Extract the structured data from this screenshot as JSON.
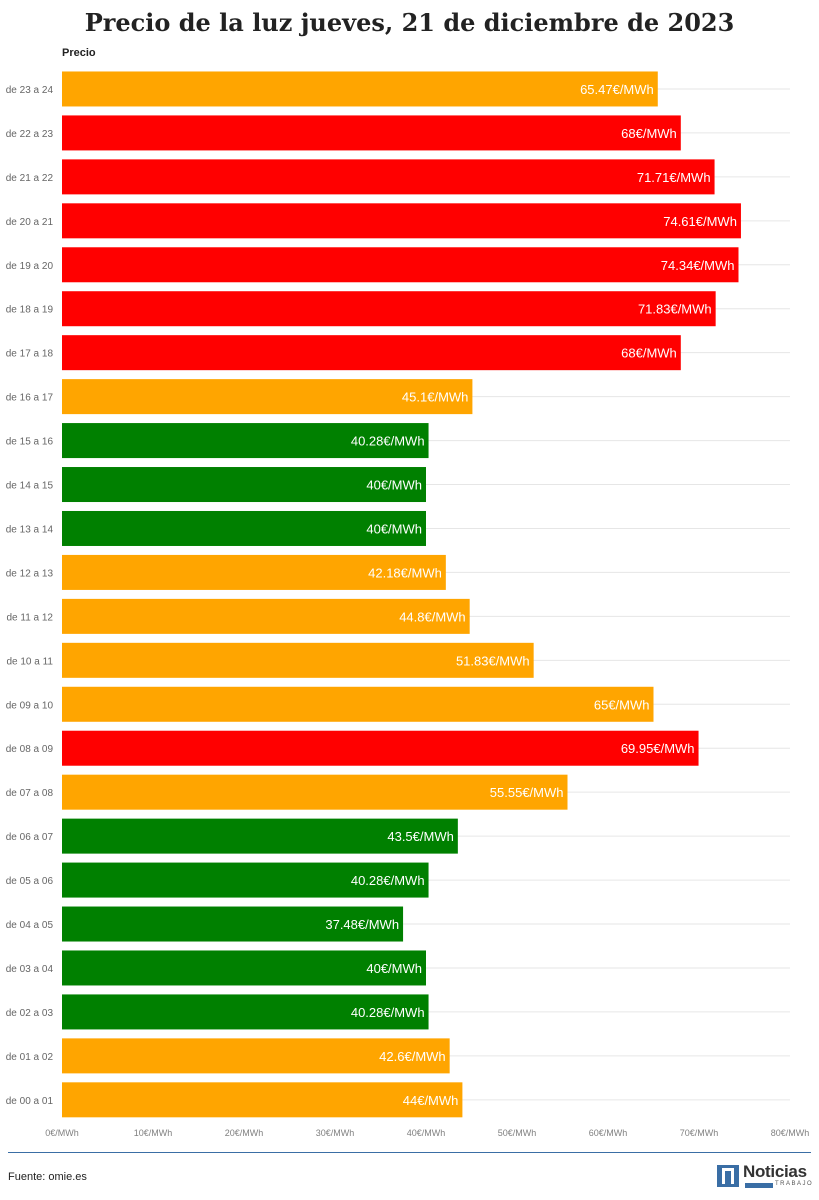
{
  "title": "Precio de la luz jueves, 21 de diciembre de 2023",
  "series_label": "Precio",
  "source": "Fuente: omie.es",
  "logo": {
    "main": "Noticias",
    "sub": "TRABAJO"
  },
  "colors": {
    "orange": "#ffa500",
    "red": "#ff0000",
    "green": "#008000",
    "grid": "#e6e6e6",
    "tick": "#808080",
    "label": "#666666"
  },
  "chart_data": {
    "type": "bar",
    "orientation": "horizontal",
    "title": "Precio de la luz jueves, 21 de diciembre de 2023",
    "xlabel": "",
    "ylabel": "",
    "xlim": [
      0,
      80
    ],
    "x_ticks": [
      0,
      10,
      20,
      30,
      40,
      50,
      60,
      70,
      80
    ],
    "x_tick_labels": [
      "0€/MWh",
      "10€/MWh",
      "20€/MWh",
      "30€/MWh",
      "40€/MWh",
      "50€/MWh",
      "60€/MWh",
      "70€/MWh",
      "80€/MWh"
    ],
    "grid": true,
    "categories": [
      "de 23 a 24",
      "de 22 a 23",
      "de 21 a 22",
      "de 20 a 21",
      "de 19 a 20",
      "de 18 a 19",
      "de 17 a 18",
      "de 16 a 17",
      "de 15 a 16",
      "de 14 a 15",
      "de 13 a 14",
      "de 12 a 13",
      "de 11 a 12",
      "de 10 a 11",
      "de 09 a 10",
      "de 08 a 09",
      "de 07 a 08",
      "de 06 a 07",
      "de 05 a 06",
      "de 04 a 05",
      "de 03 a 04",
      "de 02 a 03",
      "de 01 a 02",
      "de 00 a 01"
    ],
    "series": [
      {
        "name": "Precio",
        "values": [
          65.47,
          68,
          71.71,
          74.61,
          74.34,
          71.83,
          68,
          45.1,
          40.28,
          40,
          40,
          42.18,
          44.8,
          51.83,
          65,
          69.95,
          55.55,
          43.5,
          40.28,
          37.48,
          40,
          40.28,
          42.6,
          44
        ],
        "labels": [
          "65.47€/MWh",
          "68€/MWh",
          "71.71€/MWh",
          "74.61€/MWh",
          "74.34€/MWh",
          "71.83€/MWh",
          "68€/MWh",
          "45.1€/MWh",
          "40.28€/MWh",
          "40€/MWh",
          "40€/MWh",
          "42.18€/MWh",
          "44.8€/MWh",
          "51.83€/MWh",
          "65€/MWh",
          "69.95€/MWh",
          "55.55€/MWh",
          "43.5€/MWh",
          "40.28€/MWh",
          "37.48€/MWh",
          "40€/MWh",
          "40.28€/MWh",
          "42.6€/MWh",
          "44€/MWh"
        ],
        "colors": [
          "orange",
          "red",
          "red",
          "red",
          "red",
          "red",
          "red",
          "orange",
          "green",
          "green",
          "green",
          "orange",
          "orange",
          "orange",
          "orange",
          "red",
          "orange",
          "green",
          "green",
          "green",
          "green",
          "green",
          "orange",
          "orange"
        ]
      }
    ]
  }
}
